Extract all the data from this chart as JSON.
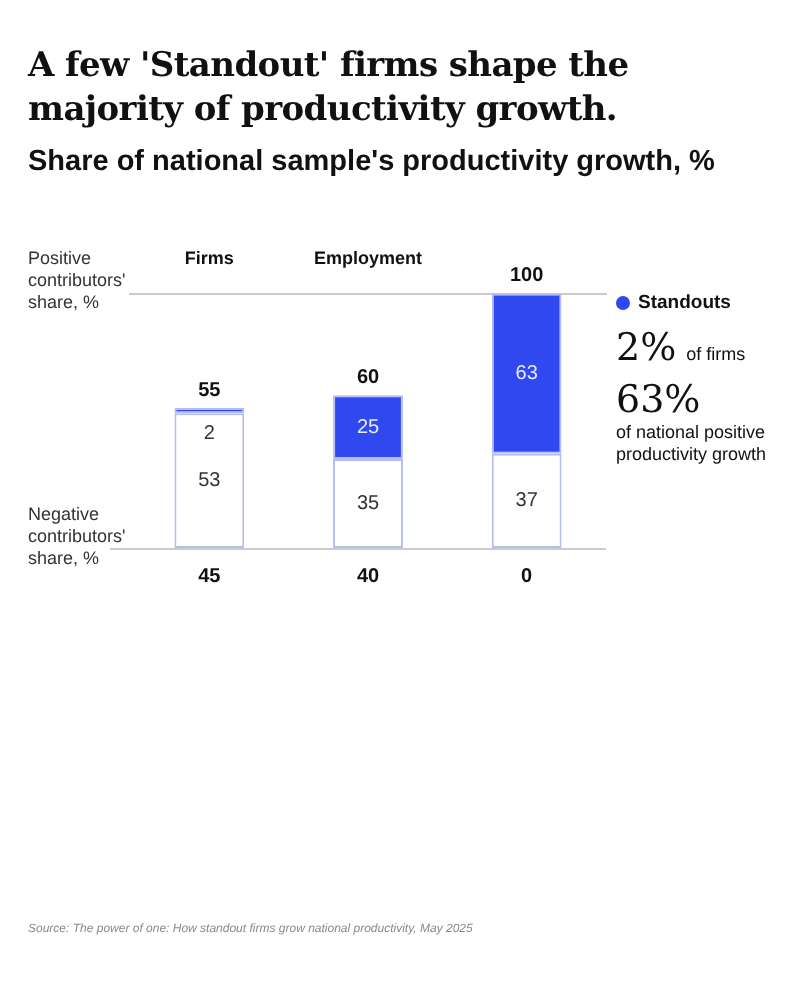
{
  "chart_data": {
    "type": "bar",
    "title": "A few 'Standout' firms shape the majority of productivity growth.",
    "subtitle": "Share of national sample's productivity growth, %",
    "categories": [
      "Firms",
      "Employment",
      null
    ],
    "stacked": true,
    "series": [
      {
        "color": "#ffffff",
        "values": [
          53,
          35,
          37
        ]
      },
      {
        "name": "Standouts",
        "color": "#3048f0",
        "values": [
          2,
          25,
          63
        ]
      }
    ],
    "data_labels": true,
    "totals": [
      "55",
      "60",
      "100"
    ],
    "legend": "right",
    "annotations": [
      "Positive contributors' share, %",
      "Negative contributors' share, %",
      "45",
      "40",
      "0",
      "2%",
      "of firms",
      "63%",
      "of national positive productivity growth",
      "Source: The power of one: How standout firms grow national productivity, May 2025"
    ]
  }
}
